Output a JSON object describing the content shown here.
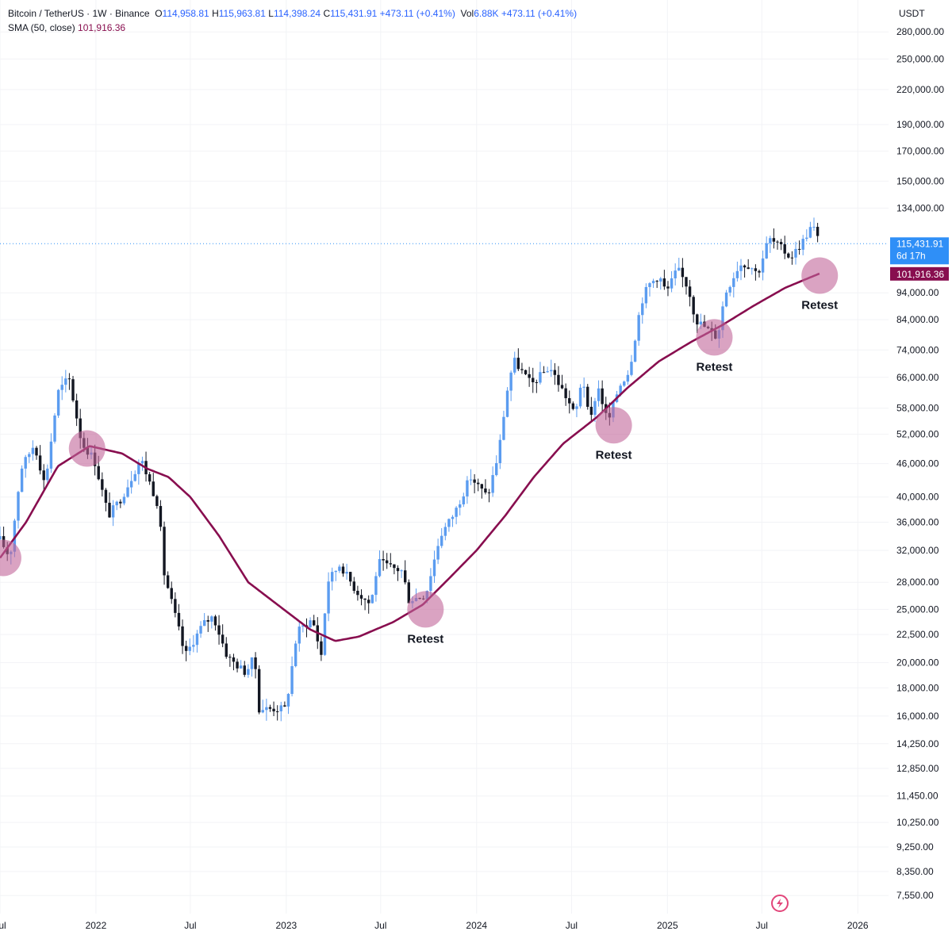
{
  "legend": {
    "symbol": "Bitcoin / TetherUS · 1W · Binance",
    "open_label": "O",
    "open": "114,958.81",
    "high_label": "H",
    "high": "115,963.81",
    "low_label": "L",
    "low": "114,398.24",
    "close_label": "C",
    "close": "115,431.91",
    "change": "+473.11 (+0.41%)",
    "vol_label": "Vol",
    "vol": "6.88K",
    "vol_change": "+473.11 (+0.41%)",
    "sma_label": "SMA (50, close)",
    "sma_value": "101,916.36"
  },
  "price_tag": {
    "price": "115,431.91",
    "countdown": "6d 17h"
  },
  "sma_tag": {
    "value": "101,916.36"
  },
  "colors": {
    "up": "#5b9cf0",
    "down": "#131722",
    "sma": "#880e4f",
    "marker": "#c2659a",
    "price_tag": "#2f8ff7"
  },
  "chart_data": {
    "type": "candlestick",
    "currency": "USDT",
    "y_scale": "log",
    "ylim": [
      7000,
      320000
    ],
    "y_ticks": [
      {
        "value": 280000,
        "label": "280,000.00"
      },
      {
        "value": 250000,
        "label": "250,000.00"
      },
      {
        "value": 220000,
        "label": "220,000.00"
      },
      {
        "value": 190000,
        "label": "190,000.00"
      },
      {
        "value": 170000,
        "label": "170,000.00"
      },
      {
        "value": 150000,
        "label": "150,000.00"
      },
      {
        "value": 134000,
        "label": "134,000.00"
      },
      {
        "value": 94000,
        "label": "94,000.00"
      },
      {
        "value": 84000,
        "label": "84,000.00"
      },
      {
        "value": 74000,
        "label": "74,000.00"
      },
      {
        "value": 66000,
        "label": "66,000.00"
      },
      {
        "value": 58000,
        "label": "58,000.00"
      },
      {
        "value": 52000,
        "label": "52,000.00"
      },
      {
        "value": 46000,
        "label": "46,000.00"
      },
      {
        "value": 40000,
        "label": "40,000.00"
      },
      {
        "value": 36000,
        "label": "36,000.00"
      },
      {
        "value": 32000,
        "label": "32,000.00"
      },
      {
        "value": 28000,
        "label": "28,000.00"
      },
      {
        "value": 25000,
        "label": "25,000.00"
      },
      {
        "value": 22500,
        "label": "22,500.00"
      },
      {
        "value": 20000,
        "label": "20,000.00"
      },
      {
        "value": 18000,
        "label": "18,000.00"
      },
      {
        "value": 16000,
        "label": "16,000.00"
      },
      {
        "value": 14250,
        "label": "14,250.00"
      },
      {
        "value": 12850,
        "label": "12,850.00"
      },
      {
        "value": 11450,
        "label": "11,450.00"
      },
      {
        "value": 10250,
        "label": "10,250.00"
      },
      {
        "value": 9250,
        "label": "9,250.00"
      },
      {
        "value": 8350,
        "label": "8,350.00"
      },
      {
        "value": 7550,
        "label": "7,550.00"
      }
    ],
    "x_ticks": [
      {
        "date": "2021-07-01",
        "label": "Jul"
      },
      {
        "date": "2022-01-01",
        "label": "2022"
      },
      {
        "date": "2022-07-01",
        "label": "Jul"
      },
      {
        "date": "2023-01-01",
        "label": "2023"
      },
      {
        "date": "2023-07-01",
        "label": "Jul"
      },
      {
        "date": "2024-01-01",
        "label": "2024"
      },
      {
        "date": "2024-07-01",
        "label": "Jul"
      },
      {
        "date": "2025-01-01",
        "label": "2025"
      },
      {
        "date": "2025-07-01",
        "label": "Jul"
      },
      {
        "date": "2026-01-01",
        "label": "2026"
      }
    ],
    "xlim": [
      "2021-07-01",
      "2026-03-01"
    ],
    "close_anchors": [
      [
        "2021-07-01",
        33500
      ],
      [
        "2021-07-20",
        31000
      ],
      [
        "2021-08-10",
        45000
      ],
      [
        "2021-09-05",
        50000
      ],
      [
        "2021-09-25",
        42000
      ],
      [
        "2021-10-20",
        62000
      ],
      [
        "2021-11-10",
        66000
      ],
      [
        "2021-12-05",
        50000
      ],
      [
        "2021-12-28",
        47000
      ],
      [
        "2022-01-25",
        37000
      ],
      [
        "2022-02-20",
        40000
      ],
      [
        "2022-03-28",
        47000
      ],
      [
        "2022-05-01",
        38500
      ],
      [
        "2022-05-12",
        29000
      ],
      [
        "2022-06-14",
        22000
      ],
      [
        "2022-06-20",
        20500
      ],
      [
        "2022-07-25",
        23500
      ],
      [
        "2022-08-14",
        24300
      ],
      [
        "2022-09-10",
        20500
      ],
      [
        "2022-10-15",
        19200
      ],
      [
        "2022-11-01",
        20500
      ],
      [
        "2022-11-10",
        16500
      ],
      [
        "2022-12-31",
        16500
      ],
      [
        "2023-01-22",
        22800
      ],
      [
        "2023-02-20",
        24000
      ],
      [
        "2023-03-10",
        20500
      ],
      [
        "2023-03-20",
        28000
      ],
      [
        "2023-04-14",
        30200
      ],
      [
        "2023-05-15",
        27000
      ],
      [
        "2023-06-12",
        25500
      ],
      [
        "2023-06-26",
        30500
      ],
      [
        "2023-07-20",
        29800
      ],
      [
        "2023-08-14",
        29300
      ],
      [
        "2023-08-21",
        26000
      ],
      [
        "2023-09-25",
        26500
      ],
      [
        "2023-10-23",
        34000
      ],
      [
        "2023-11-20",
        37500
      ],
      [
        "2023-12-20",
        43500
      ],
      [
        "2024-01-22",
        40000
      ],
      [
        "2024-02-12",
        48000
      ],
      [
        "2024-02-28",
        62000
      ],
      [
        "2024-03-12",
        71000
      ],
      [
        "2024-04-15",
        64000
      ],
      [
        "2024-05-20",
        69000
      ],
      [
        "2024-06-24",
        60000
      ],
      [
        "2024-07-08",
        56000
      ],
      [
        "2024-07-22",
        67000
      ],
      [
        "2024-08-05",
        54000
      ],
      [
        "2024-08-20",
        64000
      ],
      [
        "2024-09-09",
        54500
      ],
      [
        "2024-09-30",
        63500
      ],
      [
        "2024-10-20",
        68000
      ],
      [
        "2024-11-11",
        90000
      ],
      [
        "2024-11-25",
        97000
      ],
      [
        "2024-12-16",
        101000
      ],
      [
        "2024-12-30",
        94000
      ],
      [
        "2025-01-20",
        104000
      ],
      [
        "2025-02-10",
        96000
      ],
      [
        "2025-02-24",
        84000
      ],
      [
        "2025-03-10",
        82000
      ],
      [
        "2025-04-07",
        78000
      ],
      [
        "2025-04-21",
        93500
      ],
      [
        "2025-05-19",
        106000
      ],
      [
        "2025-06-09",
        105500
      ],
      [
        "2025-06-23",
        101500
      ],
      [
        "2025-07-14",
        118000
      ],
      [
        "2025-08-04",
        114000
      ],
      [
        "2025-08-25",
        109000
      ],
      [
        "2025-09-15",
        115500
      ],
      [
        "2025-10-06",
        125000
      ],
      [
        "2025-10-20",
        115431.91
      ]
    ],
    "sma50_anchors": [
      [
        "2021-07-01",
        31000
      ],
      [
        "2021-08-20",
        36000
      ],
      [
        "2021-10-20",
        45500
      ],
      [
        "2021-12-20",
        49500
      ],
      [
        "2022-02-20",
        48000
      ],
      [
        "2022-04-10",
        45000
      ],
      [
        "2022-05-20",
        43500
      ],
      [
        "2022-07-01",
        40000
      ],
      [
        "2022-08-25",
        34000
      ],
      [
        "2022-10-20",
        28000
      ],
      [
        "2022-12-15",
        25500
      ],
      [
        "2023-02-15",
        23000
      ],
      [
        "2023-04-05",
        21900
      ],
      [
        "2023-05-20",
        22300
      ],
      [
        "2023-07-25",
        23700
      ],
      [
        "2023-09-20",
        25500
      ],
      [
        "2023-11-10",
        28500
      ],
      [
        "2024-01-01",
        32000
      ],
      [
        "2024-02-25",
        37000
      ],
      [
        "2024-04-20",
        43500
      ],
      [
        "2024-06-15",
        50000
      ],
      [
        "2024-08-20",
        56000
      ],
      [
        "2024-10-15",
        63000
      ],
      [
        "2024-12-15",
        70500
      ],
      [
        "2025-02-15",
        76500
      ],
      [
        "2025-04-15",
        82000
      ],
      [
        "2025-06-15",
        89000
      ],
      [
        "2025-08-15",
        96000
      ],
      [
        "2025-10-20",
        101916.36
      ]
    ],
    "annotations": [
      {
        "date": "2021-07-07",
        "price": 31000,
        "text": ""
      },
      {
        "date": "2021-12-15",
        "price": 49000,
        "text": ""
      },
      {
        "date": "2023-09-25",
        "price": 25000,
        "text": "Retest"
      },
      {
        "date": "2024-09-20",
        "price": 54000,
        "text": "Retest"
      },
      {
        "date": "2025-04-01",
        "price": 78000,
        "text": "Retest"
      },
      {
        "date": "2025-10-20",
        "price": 101000,
        "text": "Retest"
      }
    ]
  }
}
